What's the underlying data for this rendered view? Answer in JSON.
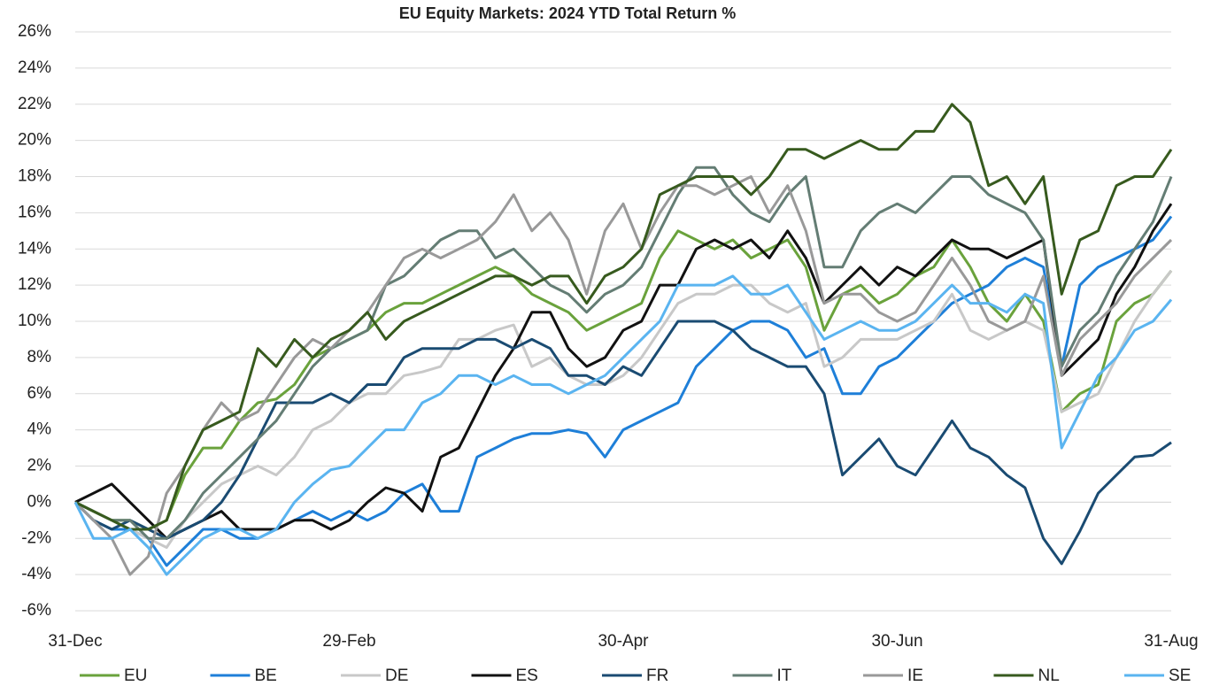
{
  "chart_data": {
    "type": "line",
    "title": "EU Equity Markets: 2024 YTD Total Return %",
    "categories": [
      "31-Dec",
      null,
      null,
      null,
      null,
      null,
      null,
      null,
      null,
      null,
      null,
      null,
      null,
      null,
      null,
      "29-Feb",
      null,
      null,
      null,
      null,
      null,
      null,
      null,
      null,
      null,
      null,
      null,
      null,
      null,
      null,
      "30-Apr",
      null,
      null,
      null,
      null,
      null,
      null,
      null,
      null,
      null,
      null,
      null,
      null,
      null,
      null,
      "30-Jun",
      null,
      null,
      null,
      null,
      null,
      null,
      null,
      null,
      null,
      null,
      null,
      null,
      null,
      null,
      "31-Aug"
    ],
    "ylim": [
      -6,
      26
    ],
    "yticks": [
      {
        "value": -6,
        "label": "-6%"
      },
      {
        "value": -4,
        "label": "-4%"
      },
      {
        "value": -2,
        "label": "-2%"
      },
      {
        "value": 0,
        "label": "0%"
      },
      {
        "value": 2,
        "label": "2%"
      },
      {
        "value": 4,
        "label": "4%"
      },
      {
        "value": 6,
        "label": "6%"
      },
      {
        "value": 8,
        "label": "8%"
      },
      {
        "value": 10,
        "label": "10%"
      },
      {
        "value": 12,
        "label": "12%"
      },
      {
        "value": 14,
        "label": "14%"
      },
      {
        "value": 16,
        "label": "16%"
      },
      {
        "value": 18,
        "label": "18%"
      },
      {
        "value": 20,
        "label": "20%"
      },
      {
        "value": 22,
        "label": "22%"
      },
      {
        "value": 24,
        "label": "24%"
      },
      {
        "value": 26,
        "label": "26%"
      }
    ],
    "grid": true,
    "legend": "bottom",
    "series": [
      {
        "name": "EU",
        "color": "#6aa23c",
        "values": [
          0,
          -0.5,
          -1,
          -1,
          -1.5,
          -1,
          1.5,
          3,
          3,
          4.5,
          5.5,
          5.7,
          6.5,
          8,
          8.5,
          9,
          9.5,
          10.5,
          11,
          11,
          11.5,
          12,
          12.5,
          13,
          12.5,
          11.5,
          11,
          10.5,
          9.5,
          10,
          10.5,
          11,
          13.5,
          15,
          14.5,
          14,
          14.5,
          13.5,
          14,
          14.5,
          13,
          9.5,
          11.5,
          12,
          11,
          11.5,
          12.5,
          13,
          14.5,
          13,
          11,
          10,
          11.5,
          10,
          5,
          6,
          6.5,
          10,
          11,
          11.5,
          12.8
        ]
      },
      {
        "name": "BE",
        "color": "#1e7fd8",
        "values": [
          0,
          -1,
          -1.5,
          -1.5,
          -2,
          -3.5,
          -2.5,
          -1.5,
          -1.5,
          -2,
          -2,
          -1.5,
          -1,
          -0.5,
          -1,
          -0.5,
          -1,
          -0.5,
          0.5,
          1,
          -0.5,
          -0.5,
          2.5,
          3,
          3.5,
          3.8,
          3.8,
          4,
          3.8,
          2.5,
          4,
          4.5,
          5,
          5.5,
          7.5,
          8.5,
          9.5,
          10,
          10,
          9.5,
          8,
          8.5,
          6,
          6,
          7.5,
          8,
          9,
          10,
          11,
          11.5,
          12,
          13,
          13.5,
          13,
          7.5,
          12,
          13,
          13.5,
          14,
          14.5,
          15.8
        ]
      },
      {
        "name": "DE",
        "color": "#c8c8c8",
        "values": [
          0,
          -0.5,
          -1,
          -1.5,
          -2,
          -2.5,
          -1,
          0,
          1,
          1.5,
          2,
          1.5,
          2.5,
          4,
          4.5,
          5.5,
          6,
          6,
          7,
          7.2,
          7.5,
          9,
          9,
          9.5,
          9.8,
          7.5,
          8,
          7,
          6.5,
          6.5,
          7,
          8,
          9.5,
          11,
          11.5,
          11.5,
          12,
          12,
          11,
          10.5,
          11,
          7.5,
          8,
          9,
          9,
          9,
          9.5,
          10,
          11.5,
          9.5,
          9,
          9.5,
          10,
          9.5,
          5,
          5.5,
          6,
          8,
          10,
          11.5,
          12.8
        ]
      },
      {
        "name": "ES",
        "color": "#111111",
        "values": [
          0,
          0.5,
          1,
          0,
          -1,
          -2,
          -1.5,
          -1,
          -0.5,
          -1.5,
          -1.5,
          -1.5,
          -1,
          -1,
          -1.5,
          -1,
          0,
          0.8,
          0.5,
          -0.5,
          2.5,
          3,
          5,
          7,
          8.5,
          10.5,
          10.5,
          8.5,
          7.5,
          8,
          9.5,
          10,
          12,
          12,
          14,
          14.5,
          14,
          14.5,
          13.5,
          15,
          13.5,
          11,
          12,
          13,
          12,
          13,
          12.5,
          13.5,
          14.5,
          14,
          14,
          13.5,
          14,
          14.5,
          7,
          8,
          9,
          11.5,
          13,
          15,
          16.5
        ]
      },
      {
        "name": "FR",
        "color": "#1a4b72",
        "values": [
          0,
          -1,
          -1.5,
          -1,
          -1.5,
          -2,
          -1.5,
          -1,
          0,
          1.5,
          3.5,
          5.5,
          5.5,
          5.5,
          6,
          5.5,
          6.5,
          6.5,
          8,
          8.5,
          8.5,
          8.5,
          9,
          9,
          8.5,
          9,
          8.5,
          7,
          7,
          6.5,
          7.5,
          7,
          8.5,
          10,
          10,
          10,
          9.5,
          8.5,
          8,
          7.5,
          7.5,
          6,
          1.5,
          2.5,
          3.5,
          2,
          1.5,
          3,
          4.5,
          3,
          2.5,
          1.5,
          0.8,
          -2,
          -3.4,
          -1.6,
          0.5,
          1.5,
          2.5,
          2.6,
          3.3
        ]
      },
      {
        "name": "IT",
        "color": "#647d74",
        "values": [
          0,
          -0.5,
          -1,
          -1,
          -2,
          -2,
          -1,
          0.5,
          1.5,
          2.5,
          3.5,
          4.5,
          6,
          7.5,
          8.5,
          9,
          9.5,
          12,
          12.5,
          13.5,
          14.5,
          15,
          15,
          13.5,
          14,
          13,
          12,
          11.5,
          10.5,
          11.5,
          12,
          13,
          15,
          17,
          18.5,
          18.5,
          17,
          16,
          15.5,
          17,
          18,
          13,
          13,
          15,
          16,
          16.5,
          16,
          17,
          18,
          18,
          17,
          16.5,
          16,
          14.5,
          7.5,
          9.5,
          10.5,
          12.5,
          14,
          15.5,
          18
        ]
      },
      {
        "name": "IE",
        "color": "#999999",
        "values": [
          0,
          -1,
          -2,
          -4,
          -3,
          0.5,
          2,
          4,
          5.5,
          4.5,
          5,
          6.5,
          8,
          9,
          8.5,
          9.5,
          10.5,
          12,
          13.5,
          14,
          13.5,
          14,
          14.5,
          15.5,
          17,
          15,
          16,
          14.5,
          11.5,
          15,
          16.5,
          14,
          16,
          17.5,
          17.5,
          17,
          17.5,
          18,
          16,
          17.5,
          15,
          11,
          11.5,
          11.5,
          10.5,
          10,
          10.5,
          12,
          13.5,
          12,
          10,
          9.5,
          10,
          12.5,
          7,
          9,
          10,
          11,
          12.5,
          13.5,
          14.5
        ]
      },
      {
        "name": "NL",
        "color": "#375a1e",
        "values": [
          0,
          -0.5,
          -1,
          -1.5,
          -1.5,
          -1,
          2,
          4,
          4.5,
          5,
          8.5,
          7.5,
          9,
          8,
          9,
          9.5,
          10.5,
          9,
          10,
          10.5,
          11,
          11.5,
          12,
          12.5,
          12.5,
          12,
          12.5,
          12.5,
          11,
          12.5,
          13,
          14,
          17,
          17.5,
          18,
          18,
          18,
          17,
          18,
          19.5,
          19.5,
          19,
          19.5,
          20,
          19.5,
          19.5,
          20.5,
          20.5,
          22,
          21,
          17.5,
          18,
          16.5,
          18,
          11.5,
          14.5,
          15,
          17.5,
          18,
          18,
          19.5
        ]
      },
      {
        "name": "SE",
        "color": "#5ab4f0",
        "values": [
          0,
          -2,
          -2,
          -1.5,
          -2.5,
          -4,
          -3,
          -2,
          -1.5,
          -1.5,
          -2,
          -1.5,
          0,
          1,
          1.8,
          2,
          3,
          4,
          4,
          5.5,
          6,
          7,
          7,
          6.5,
          7,
          6.5,
          6.5,
          6,
          6.5,
          7,
          8,
          9,
          10,
          12,
          12,
          12,
          12.5,
          11.5,
          11.5,
          12,
          10.5,
          9,
          9.5,
          10,
          9.5,
          9.5,
          10,
          11,
          12,
          11,
          11,
          10.5,
          11.5,
          11,
          3,
          5,
          7,
          8,
          9.5,
          10,
          11.2
        ]
      }
    ]
  }
}
